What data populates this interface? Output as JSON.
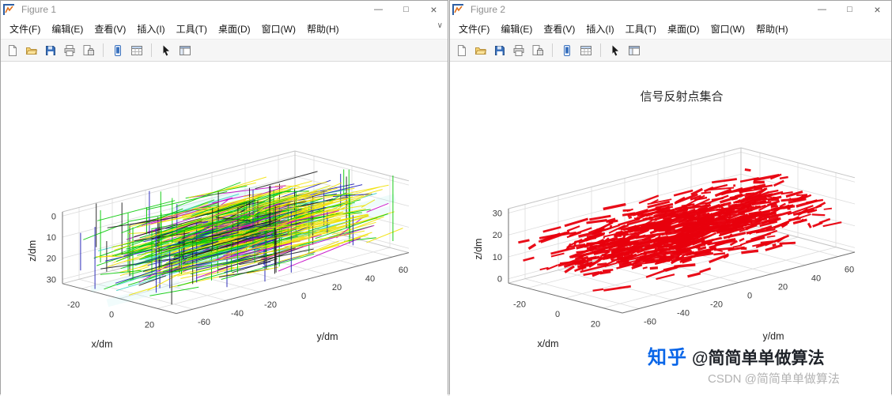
{
  "windows": [
    {
      "title": "Figure 1"
    },
    {
      "title": "Figure 2"
    }
  ],
  "window_controls": [
    {
      "name": "minimize-button",
      "glyph": "—"
    },
    {
      "name": "maximize-button",
      "glyph": "□"
    },
    {
      "name": "close-button",
      "glyph": "×"
    }
  ],
  "menu": {
    "items": [
      "文件(F)",
      "编辑(E)",
      "查看(V)",
      "插入(I)",
      "工具(T)",
      "桌面(D)",
      "窗口(W)",
      "帮助(H)"
    ],
    "overflow_glyph": "∨"
  },
  "toolbar": {
    "items": [
      {
        "button": "new-figure-button",
        "icon": "new-figure-icon"
      },
      {
        "button": "open-file-button",
        "icon": "open-file-icon"
      },
      {
        "button": "save-button",
        "icon": "save-icon"
      },
      {
        "button": "print-button",
        "icon": "print-icon"
      },
      {
        "button": "print-preview-button",
        "icon": "print-preview-icon"
      },
      {
        "sep": true
      },
      {
        "button": "mobile-view-button",
        "icon": "mobile-view-icon"
      },
      {
        "button": "plot-browser-button",
        "icon": "plot-browser-icon"
      },
      {
        "sep": true
      },
      {
        "button": "arrow-cursor-button",
        "icon": "arrow-cursor-icon"
      },
      {
        "button": "property-editor-button",
        "icon": "property-editor-icon"
      }
    ]
  },
  "chart_data": [
    {
      "type": "line3d",
      "window": "Figure 1",
      "title": "",
      "xlabel": "x/dm",
      "ylabel": "y/dm",
      "zlabel": "z/dm",
      "xticks": [
        -20,
        0,
        20
      ],
      "yticks": [
        -60,
        -40,
        -20,
        0,
        20,
        40,
        60
      ],
      "zticks": [
        0,
        10,
        20,
        30
      ],
      "xlim": [
        -30,
        30
      ],
      "ylim": [
        -70,
        70
      ],
      "zlim": [
        -2,
        32
      ],
      "zdir": "reverse",
      "grid": true,
      "n_segments": 650,
      "seed": 42,
      "palette": [
        {
          "color": "#00c800",
          "w": 0.34
        },
        {
          "color": "#f0e000",
          "w": 0.28
        },
        {
          "color": "#35d0c5",
          "w": 0.1
        },
        {
          "color": "#c400c4",
          "w": 0.11
        },
        {
          "color": "#1a1ab4",
          "w": 0.08
        },
        {
          "color": "#1a1a1a",
          "w": 0.09
        }
      ],
      "vertical_line_colors": [
        "#1a1a1a",
        "#1a1ab4",
        "#00c800"
      ],
      "haze": {
        "n": 24,
        "color": "#7fe8e0"
      },
      "description": "Dense multicolored 3-D signal ray / line-segment cloud elongated along the y axis, yellow concentration at the +y end, scattered dark vertical lines, z axis reversed"
    },
    {
      "type": "scatter3d",
      "window": "Figure 2",
      "title": "信号反射点集合",
      "xlabel": "x/dm",
      "ylabel": "y/dm",
      "zlabel": "z/dm",
      "xticks": [
        -20,
        0,
        20
      ],
      "yticks": [
        -60,
        -40,
        -20,
        0,
        20,
        40,
        60
      ],
      "zticks": [
        0,
        10,
        20,
        30
      ],
      "xlim": [
        -30,
        30
      ],
      "ylim": [
        -70,
        70
      ],
      "zlim": [
        -2,
        32
      ],
      "zdir": "normal",
      "grid": true,
      "marker_color": "#e8000d",
      "n_points": 780,
      "seed": 7,
      "description": "Red 3-D point/dash cloud of signal reflection points, elongated along the y axis, denser toward +y"
    }
  ],
  "watermark": {
    "zhihu_logo": "知乎",
    "zhihu_handle": "@简简单单做算法",
    "csdn_text": "CSDN @简简单单做算法"
  },
  "colors": {
    "accent_blue": "#0a66e8",
    "scatter_red": "#e8000d",
    "titlebar_text": "#8f8f8f"
  }
}
